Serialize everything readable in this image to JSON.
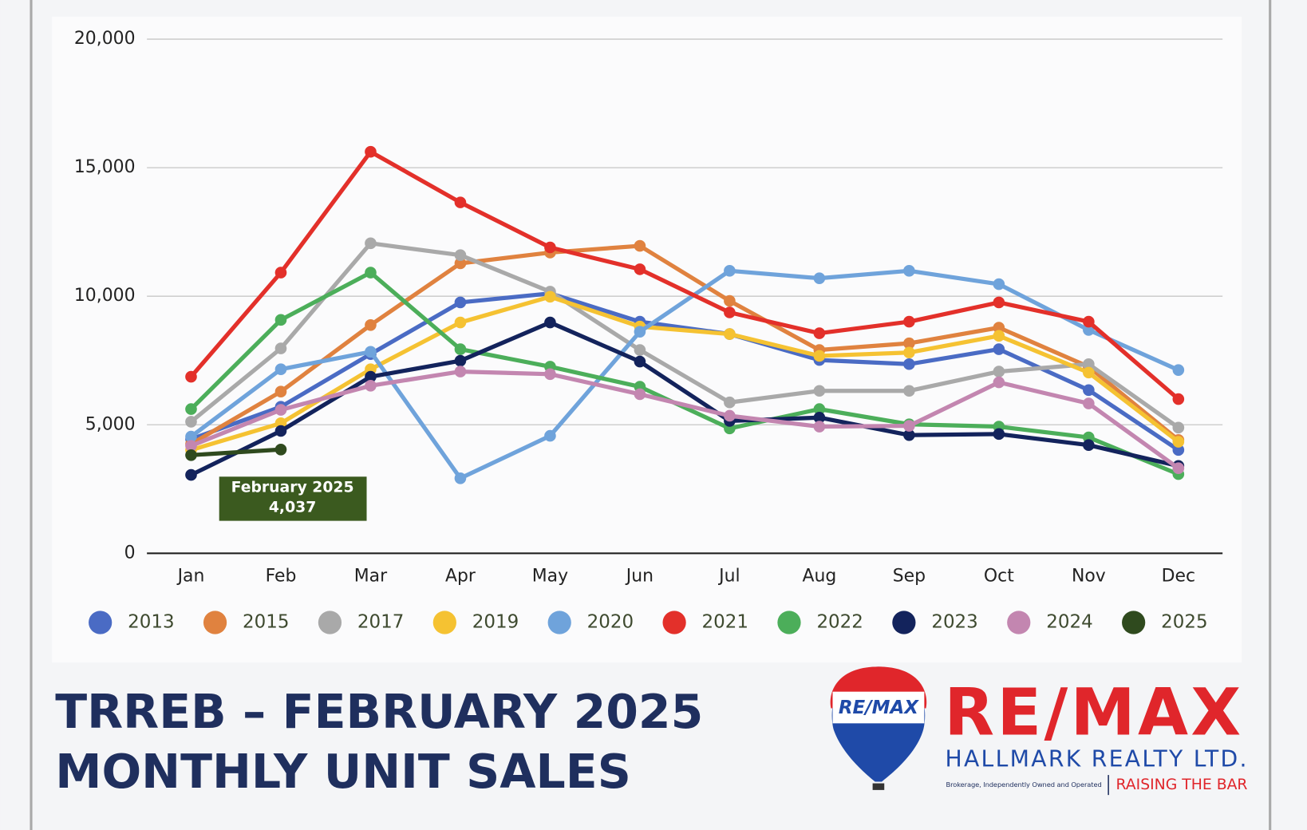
{
  "chart_data": {
    "type": "line",
    "categories": [
      "Jan",
      "Feb",
      "Mar",
      "Apr",
      "May",
      "Jun",
      "Jul",
      "Aug",
      "Sep",
      "Oct",
      "Nov",
      "Dec"
    ],
    "ylim": [
      0,
      20000
    ],
    "yticks": [
      0,
      {
        "value": 5000,
        "label": "5,000"
      },
      {
        "value": 10000,
        "label": "10,000"
      },
      {
        "value": 15000,
        "label": "15,000"
      },
      {
        "value": 20000,
        "label": "20,000"
      }
    ],
    "grid": true,
    "legend": "bottom",
    "series": [
      {
        "name": "2013",
        "color": "#4a6bc4",
        "values": [
          4440,
          5700,
          7750,
          9760,
          10110,
          9010,
          8530,
          7520,
          7360,
          7940,
          6350,
          4020
        ]
      },
      {
        "name": "2015",
        "color": "#e0823f",
        "values": [
          4250,
          6290,
          8880,
          11280,
          11700,
          11960,
          9820,
          7910,
          8170,
          8780,
          7260,
          4410
        ]
      },
      {
        "name": "2017",
        "color": "#a9a9a9",
        "values": [
          5120,
          7970,
          12060,
          11600,
          10180,
          7910,
          5870,
          6320,
          6320,
          7070,
          7360,
          4890
        ]
      },
      {
        "name": "2019",
        "color": "#f5c232",
        "values": [
          4020,
          5060,
          7160,
          8980,
          9980,
          8820,
          8530,
          7680,
          7810,
          8460,
          7030,
          4340
        ]
      },
      {
        "name": "2020",
        "color": "#6fa3db",
        "values": [
          4540,
          7160,
          7840,
          2920,
          4570,
          8620,
          10990,
          10700,
          10990,
          10470,
          8690,
          7130
        ]
      },
      {
        "name": "2021",
        "color": "#e3302a",
        "values": [
          6870,
          10920,
          15620,
          13650,
          11900,
          11050,
          9370,
          8560,
          9010,
          9760,
          9010,
          6000
        ]
      },
      {
        "name": "2022",
        "color": "#4cae5a",
        "values": [
          5610,
          9080,
          10920,
          7940,
          7260,
          6480,
          4860,
          5610,
          5020,
          4930,
          4510,
          3080
        ]
      },
      {
        "name": "2023",
        "color": "#13235c",
        "values": [
          3050,
          4760,
          6870,
          7490,
          8980,
          7460,
          5150,
          5280,
          4600,
          4640,
          4210,
          3400
        ]
      },
      {
        "name": "2024",
        "color": "#c386b0",
        "values": [
          4180,
          5580,
          6520,
          7070,
          6970,
          6190,
          5350,
          4930,
          4960,
          6650,
          5830,
          3310
        ]
      },
      {
        "name": "2025",
        "color": "#2f4a1e",
        "values": [
          3820,
          4037,
          null,
          null,
          null,
          null,
          null,
          null,
          null,
          null,
          null,
          null
        ],
        "value_labels": [
          null,
          "4,037",
          null,
          null,
          null,
          null,
          null,
          null,
          null,
          null,
          null,
          null
        ]
      }
    ],
    "annotation": "February 2025"
  },
  "footer": {
    "title_lines": [
      "TRREB – FEBRUARY 2025",
      "MONTHLY UNIT SALES"
    ],
    "logo": {
      "balloon": "RE/MAX",
      "brand": "RE/MAX",
      "office": "HALLMARK REALTY LTD.",
      "note": "Brokerage, Independently Owned and Operated",
      "slogan": "RAISING THE BAR"
    }
  }
}
